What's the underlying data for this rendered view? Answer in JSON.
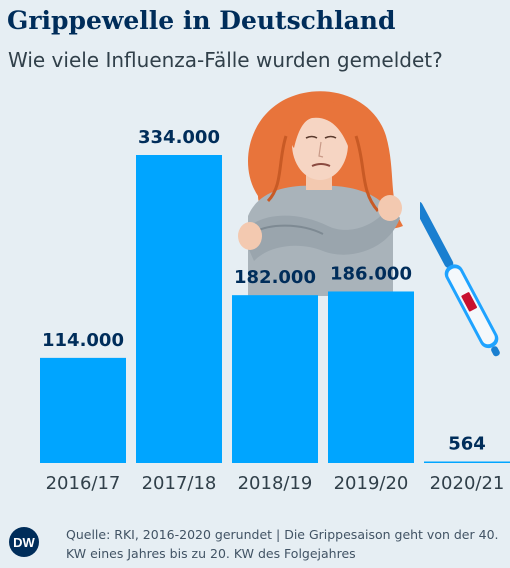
{
  "header": {
    "title": "Grippewelle in Deutschland",
    "subtitle": "Wie viele Influenza-Fälle wurden gemeldet?"
  },
  "chart_data": {
    "type": "bar",
    "categories": [
      "2016/17",
      "2017/18",
      "2018/19",
      "2019/20",
      "2020/21"
    ],
    "values": [
      114000,
      334000,
      182000,
      186000,
      564
    ],
    "value_labels": [
      "114.000",
      "334.000",
      "182.000",
      "186.000",
      "564"
    ],
    "title": "Grippewelle in Deutschland",
    "subtitle": "Wie viele Influenza-Fälle wurden gemeldet?",
    "ylim": [
      0,
      334000
    ],
    "grid": false,
    "colors": {
      "bar": "#00a5ff",
      "label": "#002d5a",
      "axis_text": "#31404a"
    }
  },
  "footer": {
    "logo_text": "DW",
    "source": "Quelle: RKI, 2016-2020 gerundet | Die Grippesaison geht von der 40. KW eines Jahres bis zu 20. KW des Folgejahres"
  },
  "illustration": {
    "woman_icon": "freezing-woman-illustration",
    "thermometer_icon": "thermometer-icon"
  }
}
